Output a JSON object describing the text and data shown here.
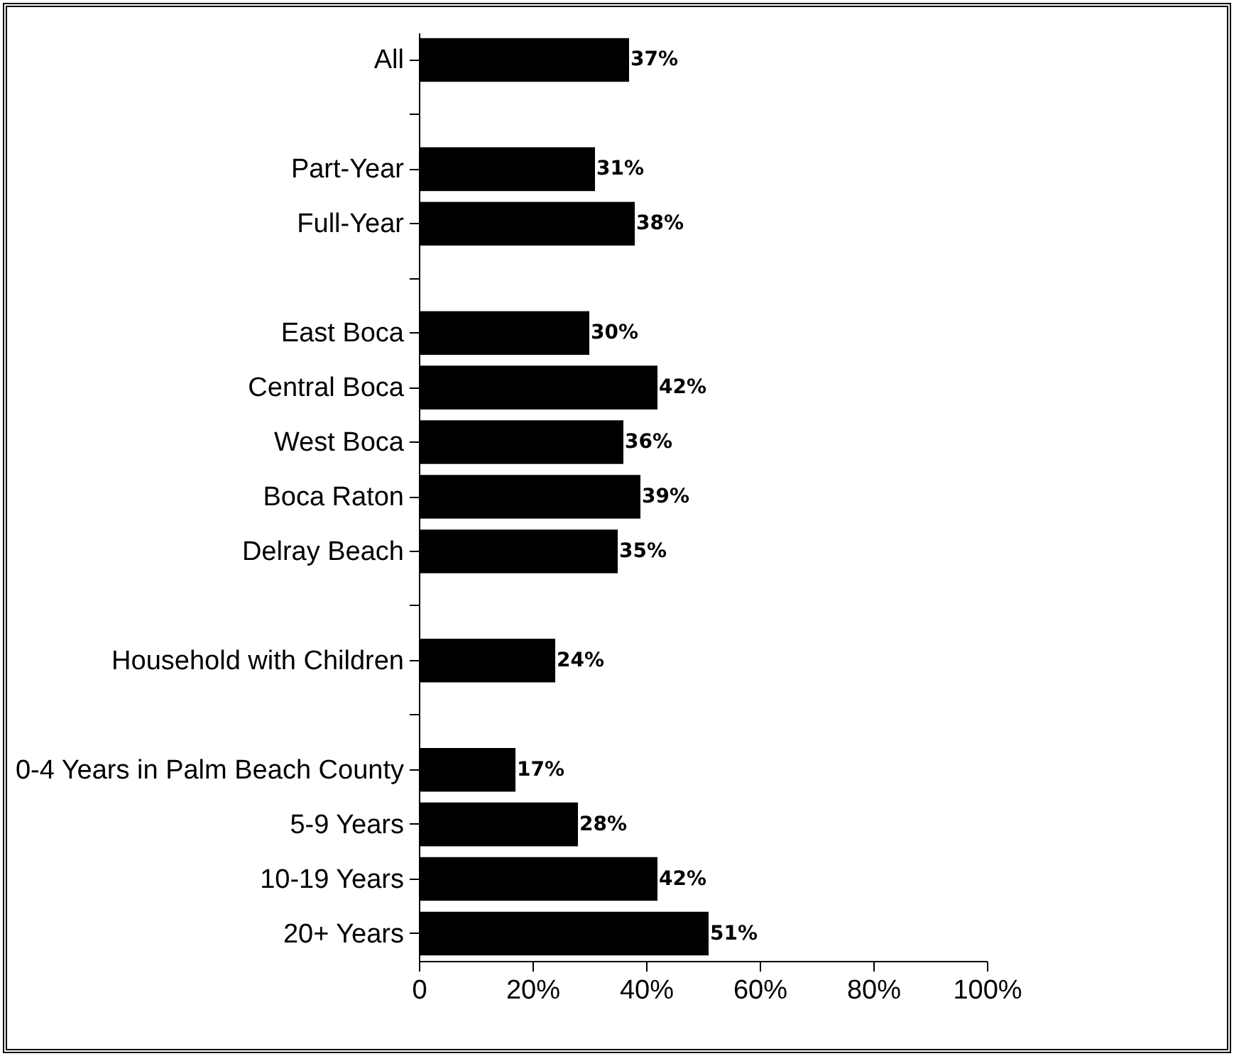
{
  "chart_data": {
    "type": "bar",
    "orientation": "horizontal",
    "color": "#000000",
    "categories": [
      "All",
      null,
      "Part-Year",
      "Full-Year",
      null,
      "East Boca",
      "Central Boca",
      "West Boca",
      "Boca Raton",
      "Delray Beach",
      null,
      "Household with Children",
      null,
      "0-4 Years in Palm Beach County",
      "5-9 Years",
      "10-19 Years",
      "20+ Years"
    ],
    "values": [
      37,
      null,
      31,
      38,
      null,
      30,
      42,
      36,
      39,
      35,
      null,
      24,
      null,
      17,
      28,
      42,
      51
    ],
    "value_labels": [
      "37%",
      null,
      "31%",
      "38%",
      null,
      "30%",
      "42%",
      "36%",
      "39%",
      "35%",
      null,
      "24%",
      null,
      "17%",
      "28%",
      "42%",
      "51%"
    ],
    "xlim": [
      0,
      100
    ],
    "xticks": [
      0,
      {
        "value": 20,
        "label": "20%"
      },
      {
        "value": 40,
        "label": "40%"
      },
      {
        "value": 60,
        "label": "60%"
      },
      {
        "value": 80,
        "label": "80%"
      },
      {
        "value": 100,
        "label": "100%"
      }
    ]
  }
}
